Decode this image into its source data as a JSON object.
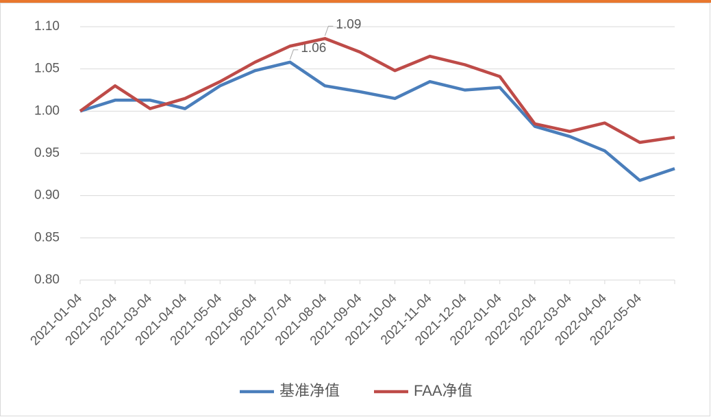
{
  "chart_data": {
    "type": "line",
    "categories": [
      "2021-01-04",
      "2021-02-04",
      "2021-03-04",
      "2021-04-04",
      "2021-05-04",
      "2021-06-04",
      "2021-07-04",
      "2021-08-04",
      "2021-09-04",
      "2021-10-04",
      "2021-11-04",
      "2021-12-04",
      "2022-01-04",
      "2022-02-04",
      "2022-03-04",
      "2022-04-04",
      "2022-05-04",
      null
    ],
    "series": [
      {
        "name": "基准净值",
        "color": "#4a7ebb",
        "values": [
          1.0,
          1.013,
          1.013,
          1.003,
          1.03,
          1.048,
          1.058,
          1.03,
          1.023,
          1.015,
          1.035,
          1.025,
          1.028,
          0.982,
          0.97,
          0.953,
          0.918,
          0.932
        ],
        "value_labels": [
          null,
          null,
          null,
          null,
          null,
          null,
          "1.06",
          null,
          null,
          null,
          null,
          null,
          null,
          null,
          null,
          null,
          null,
          null
        ]
      },
      {
        "name": "FAA净值",
        "color": "#be4b48",
        "values": [
          1.0,
          1.03,
          1.003,
          1.015,
          1.035,
          1.058,
          1.077,
          1.086,
          1.07,
          1.048,
          1.065,
          1.055,
          1.041,
          0.985,
          0.976,
          0.986,
          0.963,
          0.969
        ],
        "value_labels": [
          null,
          null,
          null,
          null,
          null,
          null,
          null,
          "1.09",
          null,
          null,
          null,
          null,
          null,
          null,
          null,
          null,
          null,
          null
        ]
      }
    ],
    "ylim": [
      0.8,
      1.1
    ],
    "yticks": [
      {
        "value": 0.8,
        "label": "0.80"
      },
      0.85,
      {
        "value": 0.9,
        "label": "0.90"
      },
      0.95,
      {
        "value": 1.0,
        "label": "1.00"
      },
      1.05,
      {
        "value": 1.1,
        "label": "1.10"
      }
    ],
    "grid": true,
    "legend": "bottom"
  }
}
